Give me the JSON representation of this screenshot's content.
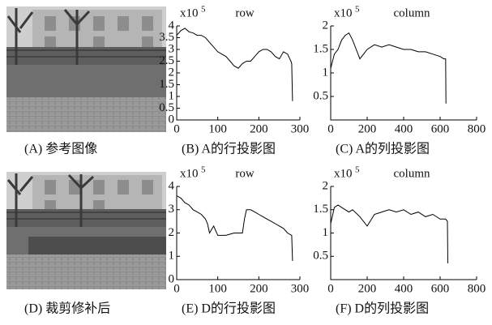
{
  "figures": [
    {
      "caption": "(A) 参考图像"
    },
    {
      "caption": "(D) 裁剪修补后"
    }
  ],
  "chart_data": [
    {
      "type": "line",
      "title": "row",
      "caption": "(B) A的行投影图",
      "y_scale": "x10",
      "y_exponent": 5,
      "xlim": [
        0,
        300
      ],
      "xticks": [
        0,
        100,
        200,
        300
      ],
      "ylim": [
        0,
        4
      ],
      "yticks": [
        0,
        0.5,
        1,
        1.5,
        2,
        2.5,
        3,
        3.5,
        4
      ],
      "color": "#000000",
      "x": [
        0,
        10,
        20,
        30,
        40,
        50,
        60,
        70,
        80,
        90,
        100,
        110,
        120,
        130,
        140,
        150,
        160,
        170,
        180,
        190,
        200,
        210,
        220,
        230,
        240,
        250,
        260,
        270,
        278,
        280,
        282
      ],
      "values": [
        3.6,
        3.8,
        3.9,
        3.75,
        3.7,
        3.6,
        3.6,
        3.5,
        3.3,
        3.1,
        2.9,
        2.8,
        2.7,
        2.5,
        2.3,
        2.2,
        2.4,
        2.5,
        2.5,
        2.7,
        2.9,
        3.0,
        3.0,
        2.9,
        2.7,
        2.6,
        2.9,
        2.8,
        2.5,
        2.4,
        0.8
      ]
    },
    {
      "type": "line",
      "title": "column",
      "caption": "(C) A的列投影图",
      "y_scale": "x10",
      "y_exponent": 5,
      "xlim": [
        0,
        800
      ],
      "xticks": [
        0,
        200,
        400,
        600,
        800
      ],
      "ylim": [
        0,
        2
      ],
      "yticks": [
        0.5,
        1,
        1.5,
        2
      ],
      "color": "#000000",
      "x": [
        0,
        20,
        40,
        60,
        80,
        100,
        120,
        140,
        160,
        180,
        200,
        240,
        280,
        320,
        360,
        400,
        440,
        480,
        520,
        560,
        600,
        620,
        630,
        632
      ],
      "values": [
        1.1,
        1.4,
        1.5,
        1.7,
        1.8,
        1.85,
        1.7,
        1.5,
        1.3,
        1.4,
        1.5,
        1.6,
        1.55,
        1.6,
        1.55,
        1.5,
        1.5,
        1.45,
        1.45,
        1.4,
        1.35,
        1.3,
        1.3,
        0.35
      ]
    },
    {
      "type": "line",
      "title": "row",
      "caption": "(E) D的行投影图",
      "y_scale": "x10",
      "y_exponent": 5,
      "xlim": [
        0,
        300
      ],
      "xticks": [
        0,
        100,
        200,
        300
      ],
      "ylim": [
        0,
        4
      ],
      "yticks": [
        0,
        1,
        2,
        3,
        4
      ],
      "color": "#000000",
      "x": [
        0,
        10,
        20,
        30,
        40,
        50,
        60,
        70,
        75,
        80,
        90,
        100,
        110,
        120,
        130,
        140,
        150,
        160,
        165,
        170,
        180,
        190,
        200,
        210,
        220,
        230,
        240,
        250,
        260,
        270,
        280,
        282
      ],
      "values": [
        3.6,
        3.5,
        3.3,
        3.2,
        3.0,
        2.9,
        2.8,
        2.6,
        2.4,
        2.0,
        2.3,
        1.9,
        1.9,
        1.9,
        1.95,
        2.0,
        2.0,
        2.0,
        2.6,
        3.0,
        3.0,
        2.9,
        2.8,
        2.7,
        2.6,
        2.5,
        2.4,
        2.3,
        2.2,
        2.0,
        1.9,
        0.8
      ]
    },
    {
      "type": "line",
      "title": "column",
      "caption": "(F) D的列投影图",
      "y_scale": "x10",
      "y_exponent": 5,
      "xlim": [
        0,
        800
      ],
      "xticks": [
        0,
        200,
        400,
        600,
        800
      ],
      "ylim": [
        0,
        2
      ],
      "yticks": [
        0.5,
        1,
        1.5,
        2
      ],
      "color": "#000000",
      "x": [
        0,
        20,
        40,
        60,
        80,
        100,
        120,
        160,
        200,
        240,
        280,
        320,
        360,
        400,
        440,
        480,
        520,
        560,
        600,
        630,
        640,
        642
      ],
      "values": [
        1.2,
        1.55,
        1.6,
        1.55,
        1.5,
        1.45,
        1.5,
        1.35,
        1.15,
        1.4,
        1.45,
        1.5,
        1.45,
        1.5,
        1.4,
        1.45,
        1.35,
        1.4,
        1.3,
        1.3,
        1.25,
        0.35
      ]
    }
  ]
}
